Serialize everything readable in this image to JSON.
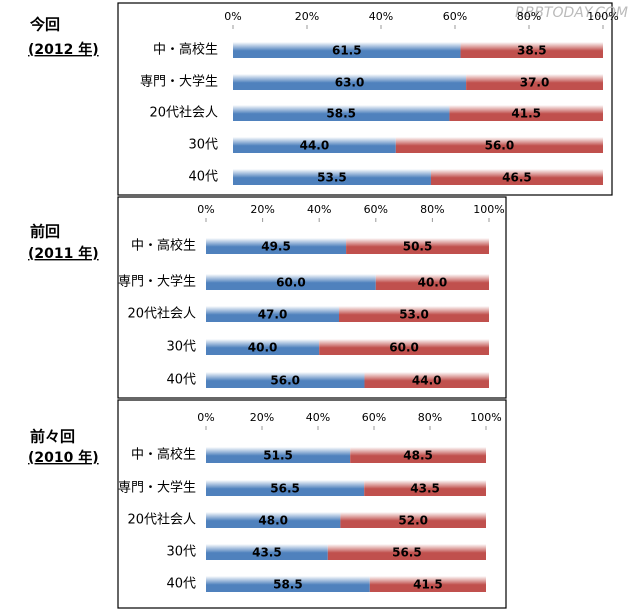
{
  "watermark": "RBBTODAY.COM",
  "chart_data": [
    {
      "type": "bar",
      "stacked": true,
      "orientation": "horizontal",
      "title": "今回",
      "subtitle": "(2012 年)",
      "categories": [
        "中・高校生",
        "専門・大学生",
        "20代社会人",
        "30代",
        "40代"
      ],
      "series": [
        {
          "color": "#4f81bd",
          "values": [
            61.5,
            63,
            58.5,
            44,
            53.5
          ],
          "value_labels": [
            "61.5",
            "63.0",
            "58.5",
            "44.0",
            "53.5"
          ]
        },
        {
          "color": "#c0504d",
          "values": [
            38.5,
            37,
            41.5,
            56,
            46.5
          ],
          "value_labels": [
            "38.5",
            "37.0",
            "41.5",
            "56.0",
            "46.5"
          ]
        }
      ],
      "xlim": [
        0,
        100
      ],
      "xticks": [
        {
          "value": 0,
          "label": "0%"
        },
        {
          "value": 20,
          "label": "20%"
        },
        {
          "value": 40,
          "label": "40%"
        },
        {
          "value": 60,
          "label": "60%"
        },
        {
          "value": 80,
          "label": "80%"
        },
        {
          "value": 100,
          "label": "100%"
        }
      ]
    },
    {
      "type": "bar",
      "stacked": true,
      "orientation": "horizontal",
      "title": "前回",
      "subtitle": "(2011 年)",
      "categories": [
        "中・高校生",
        "専門・大学生",
        "20代社会人",
        "30代",
        "40代"
      ],
      "series": [
        {
          "color": "#4f81bd",
          "values": [
            49.5,
            60,
            47,
            40,
            56
          ],
          "value_labels": [
            "49.5",
            "60.0",
            "47.0",
            "40.0",
            "56.0"
          ]
        },
        {
          "color": "#c0504d",
          "values": [
            50.5,
            40,
            53,
            60,
            44
          ],
          "value_labels": [
            "50.5",
            "40.0",
            "53.0",
            "60.0",
            "44.0"
          ]
        }
      ],
      "xlim": [
        0,
        100
      ],
      "xticks": [
        {
          "value": 0,
          "label": "0%"
        },
        {
          "value": 20,
          "label": "20%"
        },
        {
          "value": 40,
          "label": "40%"
        },
        {
          "value": 60,
          "label": "60%"
        },
        {
          "value": 80,
          "label": "80%"
        },
        {
          "value": 100,
          "label": "100%"
        }
      ]
    },
    {
      "type": "bar",
      "stacked": true,
      "orientation": "horizontal",
      "title": "前々回",
      "subtitle": "(2010 年)",
      "categories": [
        "中・高校生",
        "専門・大学生",
        "20代社会人",
        "30代",
        "40代"
      ],
      "series": [
        {
          "color": "#4f81bd",
          "values": [
            51.5,
            56.5,
            48,
            43.5,
            58.5
          ],
          "value_labels": [
            "51.5",
            "56.5",
            "48.0",
            "43.5",
            "58.5"
          ]
        },
        {
          "color": "#c0504d",
          "values": [
            48.5,
            43.5,
            52,
            56.5,
            41.5
          ],
          "value_labels": [
            "48.5",
            "43.5",
            "52.0",
            "56.5",
            "41.5"
          ]
        }
      ],
      "xlim": [
        0,
        100
      ],
      "xticks": [
        {
          "value": 0,
          "label": "0%"
        },
        {
          "value": 20,
          "label": "20%"
        },
        {
          "value": 40,
          "label": "40%"
        },
        {
          "value": 60,
          "label": "60%"
        },
        {
          "value": 80,
          "label": "80%"
        },
        {
          "value": 100,
          "label": "100%"
        }
      ]
    }
  ]
}
